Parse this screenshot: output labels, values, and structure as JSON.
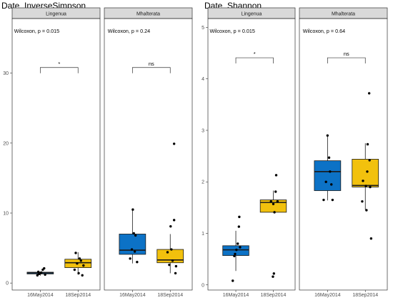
{
  "chart_data": [
    {
      "type": "box",
      "title": "Date_InverseSimpson",
      "xlabel": "",
      "ylabel": "",
      "ylim": [
        -1,
        37.5
      ],
      "yticks": [
        0,
        10,
        20,
        30
      ],
      "categories": [
        "16May2014",
        "18Sep2014"
      ],
      "colors": [
        "#0c72c6",
        "#f2c10d"
      ],
      "facets": [
        {
          "name": "Lingenua",
          "annotation": "Wilcoxon, p = 0.015",
          "significance": "*",
          "bracket_y": 30.8,
          "boxes": [
            {
              "category": "16May2014",
              "q1": 1.3,
              "median": 1.45,
              "q3": 1.55,
              "whisker_low": 1.05,
              "whisker_high": 1.6
            },
            {
              "category": "18Sep2014",
              "q1": 2.2,
              "median": 2.9,
              "q3": 3.4,
              "whisker_low": 1.2,
              "whisker_high": 4.4
            }
          ],
          "points": [
            {
              "category": "16May2014",
              "dx": -0.15,
              "y": 1.1
            },
            {
              "category": "16May2014",
              "dx": -0.06,
              "y": 1.3
            },
            {
              "category": "16May2014",
              "dx": 0.05,
              "y": 1.5
            },
            {
              "category": "16May2014",
              "dx": 0.13,
              "y": 1.9
            },
            {
              "category": "16May2014",
              "dx": 0.2,
              "y": 2.1
            },
            {
              "category": "16May2014",
              "dx": -0.1,
              "y": 1.6
            },
            {
              "category": "16May2014",
              "dx": 0.25,
              "y": 1.2
            },
            {
              "category": "16May2014",
              "dx": 0.0,
              "y": 1.4
            },
            {
              "category": "18Sep2014",
              "dx": -0.18,
              "y": 1.9
            },
            {
              "category": "18Sep2014",
              "dx": -0.05,
              "y": 2.8
            },
            {
              "category": "18Sep2014",
              "dx": 0.08,
              "y": 3.5
            },
            {
              "category": "18Sep2014",
              "dx": 0.15,
              "y": 3.2
            },
            {
              "category": "18Sep2014",
              "dx": -0.12,
              "y": 4.3
            },
            {
              "category": "18Sep2014",
              "dx": 0.03,
              "y": 1.4
            },
            {
              "category": "18Sep2014",
              "dx": 0.22,
              "y": 1.1
            },
            {
              "category": "18Sep2014",
              "dx": 0.28,
              "y": 2.5
            }
          ]
        },
        {
          "name": "Mhalterata",
          "annotation": "Wilcoxon, p = 0.24",
          "significance": "ns",
          "bracket_y": 30.8,
          "boxes": [
            {
              "category": "16May2014",
              "q1": 4.1,
              "median": 4.7,
              "q3": 7.0,
              "whisker_low": 2.8,
              "whisker_high": 10.5
            },
            {
              "category": "18Sep2014",
              "q1": 2.9,
              "median": 3.3,
              "q3": 4.8,
              "whisker_low": 1.4,
              "whisker_high": 7.0
            }
          ],
          "points": [
            {
              "category": "16May2014",
              "dx": -0.12,
              "y": 3.5
            },
            {
              "category": "16May2014",
              "dx": 0.02,
              "y": 10.5
            },
            {
              "category": "16May2014",
              "dx": 0.07,
              "y": 7.1
            },
            {
              "category": "16May2014",
              "dx": 0.16,
              "y": 6.8
            },
            {
              "category": "16May2014",
              "dx": -0.03,
              "y": 4.8
            },
            {
              "category": "16May2014",
              "dx": 0.12,
              "y": 4.5
            },
            {
              "category": "16May2014",
              "dx": 0.24,
              "y": 3.0
            },
            {
              "category": "18Sep2014",
              "dx": 0.2,
              "y": 19.9
            },
            {
              "category": "18Sep2014",
              "dx": 0.2,
              "y": 9.0
            },
            {
              "category": "18Sep2014",
              "dx": 0.02,
              "y": 8.1
            },
            {
              "category": "18Sep2014",
              "dx": 0.06,
              "y": 4.8
            },
            {
              "category": "18Sep2014",
              "dx": -0.14,
              "y": 4.4
            },
            {
              "category": "18Sep2014",
              "dx": 0.12,
              "y": 3.2
            },
            {
              "category": "18Sep2014",
              "dx": -0.05,
              "y": 2.6
            },
            {
              "category": "18Sep2014",
              "dx": 0.27,
              "y": 1.4
            },
            {
              "category": "18Sep2014",
              "dx": 0.3,
              "y": 2.4
            }
          ]
        }
      ]
    },
    {
      "type": "box",
      "title": "Date_Shannon",
      "xlabel": "",
      "ylabel": "",
      "ylim": [
        -0.1,
        5.13
      ],
      "yticks": [
        0,
        1,
        2,
        3,
        4,
        5
      ],
      "categories": [
        "16May2014",
        "18Sep2014"
      ],
      "colors": [
        "#0c72c6",
        "#f2c10d"
      ],
      "facets": [
        {
          "name": "Lingenua",
          "annotation": "Wilcoxon, p = 0.015",
          "significance": "*",
          "bracket_y": 4.41,
          "boxes": [
            {
              "category": "16May2014",
              "q1": 0.57,
              "median": 0.68,
              "q3": 0.76,
              "whisker_low": 0.27,
              "whisker_high": 1.05
            },
            {
              "category": "18Sep2014",
              "q1": 1.41,
              "median": 1.6,
              "q3": 1.65,
              "whisker_low": 1.41,
              "whisker_high": 1.83
            }
          ],
          "points": [
            {
              "category": "16May2014",
              "dx": -0.16,
              "y": 0.08
            },
            {
              "category": "16May2014",
              "dx": -0.08,
              "y": 0.56
            },
            {
              "category": "16May2014",
              "dx": 0.03,
              "y": 0.68
            },
            {
              "category": "16May2014",
              "dx": 0.1,
              "y": 0.8
            },
            {
              "category": "16May2014",
              "dx": 0.16,
              "y": 1.13
            },
            {
              "category": "16May2014",
              "dx": 0.18,
              "y": 1.32
            },
            {
              "category": "16May2014",
              "dx": 0.22,
              "y": 0.73
            },
            {
              "category": "16May2014",
              "dx": -0.04,
              "y": 0.6
            },
            {
              "category": "18Sep2014",
              "dx": -0.12,
              "y": 1.62
            },
            {
              "category": "18Sep2014",
              "dx": 0.0,
              "y": 1.57
            },
            {
              "category": "18Sep2014",
              "dx": 0.06,
              "y": 1.41
            },
            {
              "category": "18Sep2014",
              "dx": 0.12,
              "y": 1.81
            },
            {
              "category": "18Sep2014",
              "dx": 0.15,
              "y": 2.13
            },
            {
              "category": "18Sep2014",
              "dx": 0.03,
              "y": 0.22
            },
            {
              "category": "18Sep2014",
              "dx": -0.02,
              "y": 0.16
            },
            {
              "category": "18Sep2014",
              "dx": 0.22,
              "y": 1.62
            }
          ]
        },
        {
          "name": "Mhalterata",
          "annotation": "Wilcoxon, p = 0.64",
          "significance": "ns",
          "bracket_y": 4.41,
          "boxes": [
            {
              "category": "16May2014",
              "q1": 1.83,
              "median": 2.2,
              "q3": 2.41,
              "whisker_low": 1.64,
              "whisker_high": 2.9
            },
            {
              "category": "18Sep2014",
              "q1": 1.9,
              "median": 1.93,
              "q3": 2.44,
              "whisker_low": 1.46,
              "whisker_high": 2.75
            }
          ],
          "points": [
            {
              "category": "16May2014",
              "dx": -0.2,
              "y": 1.65
            },
            {
              "category": "16May2014",
              "dx": -0.08,
              "y": 2.0
            },
            {
              "category": "16May2014",
              "dx": 0.0,
              "y": 2.9
            },
            {
              "category": "16May2014",
              "dx": 0.08,
              "y": 2.47
            },
            {
              "category": "16May2014",
              "dx": 0.13,
              "y": 2.2
            },
            {
              "category": "16May2014",
              "dx": 0.2,
              "y": 1.95
            },
            {
              "category": "16May2014",
              "dx": 0.26,
              "y": 1.65
            },
            {
              "category": "18Sep2014",
              "dx": 0.2,
              "y": 3.72
            },
            {
              "category": "18Sep2014",
              "dx": 0.12,
              "y": 2.73
            },
            {
              "category": "18Sep2014",
              "dx": 0.22,
              "y": 2.42
            },
            {
              "category": "18Sep2014",
              "dx": 0.1,
              "y": 2.2
            },
            {
              "category": "18Sep2014",
              "dx": -0.12,
              "y": 2.02
            },
            {
              "category": "18Sep2014",
              "dx": 0.03,
              "y": 1.92
            },
            {
              "category": "18Sep2014",
              "dx": -0.16,
              "y": 1.62
            },
            {
              "category": "18Sep2014",
              "dx": 0.06,
              "y": 1.45
            },
            {
              "category": "18Sep2014",
              "dx": 0.3,
              "y": 0.9
            },
            {
              "category": "18Sep2014",
              "dx": 0.25,
              "y": 1.9
            }
          ]
        }
      ]
    }
  ]
}
